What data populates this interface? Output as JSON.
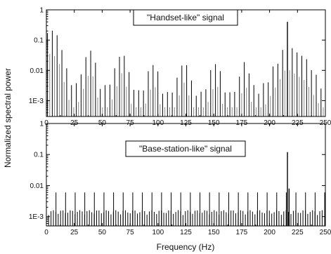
{
  "figure": {
    "ylabel": "Normalized spectral power",
    "xlabel": "Frequency (Hz)",
    "x_tick_labels": [
      "0",
      "25",
      "50",
      "75",
      "100",
      "125",
      "150",
      "175",
      "200",
      "225",
      "250"
    ],
    "y_tick_labels": [
      "1",
      "0.1",
      "0.01",
      "1E-3"
    ]
  },
  "chart_data": [
    {
      "type": "bar",
      "scale": "log-y",
      "title": "\"Handset-like\" signal",
      "xlim": [
        0,
        250
      ],
      "ylim": [
        0.0003,
        1
      ],
      "xticks": [
        0,
        25,
        50,
        75,
        100,
        125,
        150,
        175,
        200,
        225,
        250
      ],
      "yticks": [
        1,
        0.1,
        0.01,
        0.001
      ],
      "line_spacing_hz": 4.3,
      "envelope": [
        {
          "x": 1,
          "y": 0.25
        },
        {
          "x": 10,
          "y": 0.18
        },
        {
          "x": 22,
          "y": 0.004
        },
        {
          "x": 27,
          "y": 0.004
        },
        {
          "x": 40,
          "y": 0.08
        },
        {
          "x": 48,
          "y": 0.004
        },
        {
          "x": 55,
          "y": 0.003
        },
        {
          "x": 68,
          "y": 0.06
        },
        {
          "x": 78,
          "y": 0.003
        },
        {
          "x": 85,
          "y": 0.002
        },
        {
          "x": 96,
          "y": 0.03
        },
        {
          "x": 105,
          "y": 0.002
        },
        {
          "x": 112,
          "y": 0.002
        },
        {
          "x": 124,
          "y": 0.03
        },
        {
          "x": 133,
          "y": 0.002
        },
        {
          "x": 140,
          "y": 0.002
        },
        {
          "x": 152,
          "y": 0.03
        },
        {
          "x": 161,
          "y": 0.002
        },
        {
          "x": 168,
          "y": 0.002
        },
        {
          "x": 178,
          "y": 0.025
        },
        {
          "x": 188,
          "y": 0.002
        },
        {
          "x": 195,
          "y": 0.004
        },
        {
          "x": 215,
          "y": 0.08
        },
        {
          "x": 232,
          "y": 0.03
        },
        {
          "x": 248,
          "y": 0.003
        }
      ],
      "peaks": [
        {
          "x": 216,
          "y": 0.4
        }
      ]
    },
    {
      "type": "bar",
      "scale": "log-y",
      "title": "\"Base-station-like\" signal",
      "xlim": [
        0,
        250
      ],
      "ylim": [
        0.0005,
        1
      ],
      "xticks": [
        0,
        25,
        50,
        75,
        100,
        125,
        150,
        175,
        200,
        225,
        250
      ],
      "yticks": [
        1,
        0.1,
        0.01,
        0.001
      ],
      "line_spacing_hz": 4.3,
      "baseline_level": 0.0014,
      "major_lines": {
        "start": 8.6,
        "step": 8.6,
        "level": 0.006
      },
      "peaks": [
        {
          "x": 216,
          "y": 0.12
        },
        {
          "x": 217.5,
          "y": 0.008
        }
      ]
    }
  ]
}
